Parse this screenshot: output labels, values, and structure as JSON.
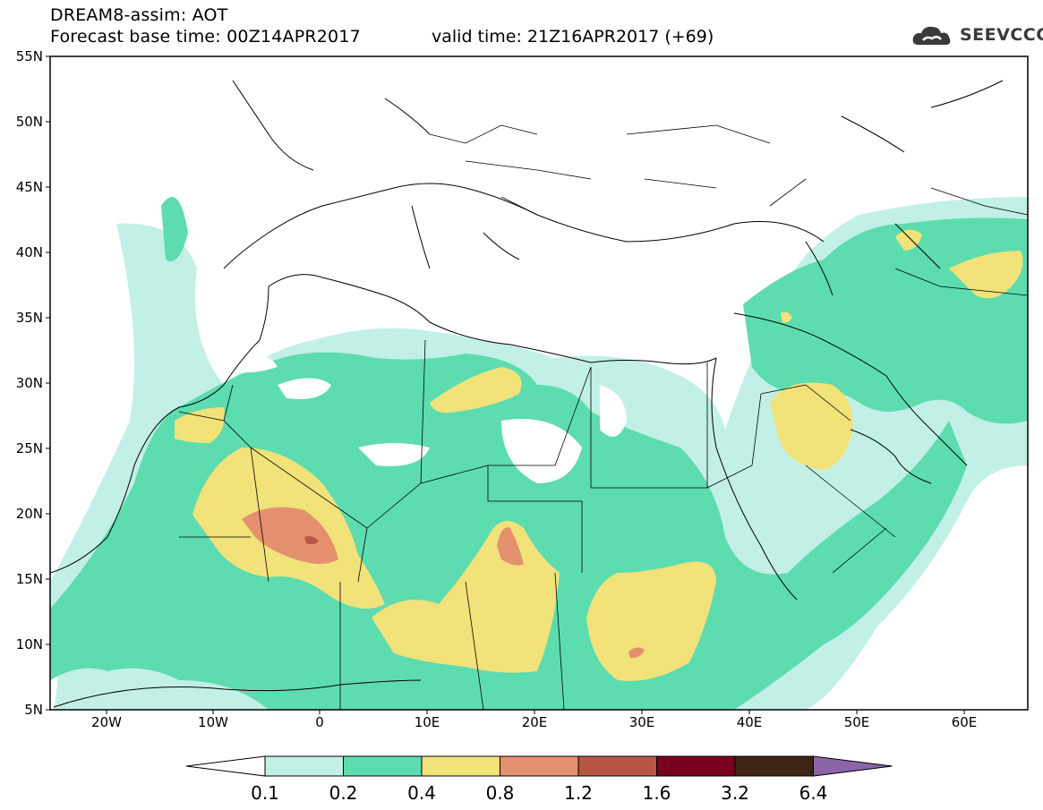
{
  "header": {
    "title": "DREAM8-assim: AOT",
    "base_time": "Forecast base time: 00Z14APR2017",
    "valid_time": "valid time: 21Z16APR2017 (+69)"
  },
  "logo": {
    "text": "SEEVCCC",
    "icon": "cloud-icon"
  },
  "axes": {
    "lat_labels": [
      "55N",
      "50N",
      "45N",
      "40N",
      "35N",
      "30N",
      "25N",
      "20N",
      "15N",
      "10N",
      "5N"
    ],
    "lon_labels": [
      "20W",
      "10W",
      "0",
      "10E",
      "20E",
      "30E",
      "40E",
      "50E",
      "60E"
    ]
  },
  "colorbar": {
    "levels": [
      "0.1",
      "0.2",
      "0.4",
      "0.8",
      "1.2",
      "1.6",
      "3.2",
      "6.4"
    ],
    "colors": [
      "#ffffff",
      "#c2f0e6",
      "#5ddcb0",
      "#f2e27a",
      "#e5906e",
      "#b55647",
      "#7a0022",
      "#3e2415",
      "#8b65a8"
    ]
  }
}
